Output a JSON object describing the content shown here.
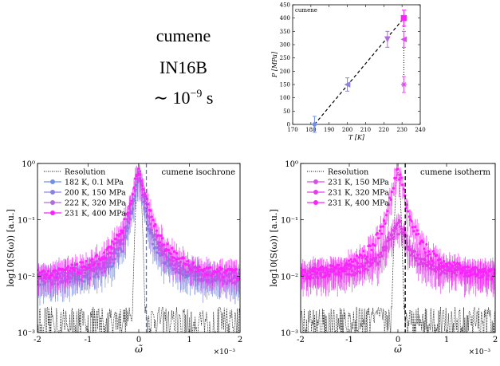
{
  "info": {
    "line1": "cumene",
    "line2": "IN16B",
    "line3_prefix": "∼ 10",
    "line3_exponent": "−9",
    "line3_unit": " s"
  },
  "chart_data": [
    {
      "id": "pt-diagram",
      "type": "scatter",
      "annotation": "cumene",
      "xlabel": "T [K]",
      "ylabel": "P [MPa]",
      "xlim": [
        170,
        240
      ],
      "ylim": [
        0,
        450
      ],
      "xticks": [
        "170",
        "180",
        "190",
        "200",
        "210",
        "220",
        "230",
        "240"
      ],
      "yticks": [
        "0",
        "50",
        "100",
        "150",
        "200",
        "250",
        "300",
        "350",
        "400",
        "450"
      ],
      "grid": false,
      "points": [
        {
          "x": 182,
          "y": 0.1,
          "yerr": 30,
          "marker": "diamond",
          "color": "#6f8fe8"
        },
        {
          "x": 200,
          "y": 150,
          "yerr": 25,
          "marker": "tri-left",
          "color": "#8b82e0"
        },
        {
          "x": 222,
          "y": 320,
          "yerr": 30,
          "marker": "tri-down",
          "color": "#b06de0"
        },
        {
          "x": 231,
          "y": 150,
          "yerr": 30,
          "marker": "star",
          "color": "#d84ee8"
        },
        {
          "x": 231,
          "y": 320,
          "yerr": 30,
          "marker": "tri-left",
          "color": "#d84ee8"
        },
        {
          "x": 231,
          "y": 400,
          "yerr": 30,
          "marker": "square",
          "color": "#ff20ff"
        }
      ],
      "dashed_line": {
        "x": [
          182,
          231
        ],
        "y": [
          0,
          400
        ]
      },
      "dotted_line": {
        "x": [
          231,
          231
        ],
        "y": [
          150,
          400
        ]
      }
    },
    {
      "id": "isochrone",
      "type": "line",
      "annotation": "cumene isochrone",
      "xlabel": "ω̃",
      "ylabel": "log10(S(ω)) [a.u.]",
      "x_multiplier": "×10⁻³",
      "xlim": [
        -2,
        2
      ],
      "ylim_log": [
        -3,
        0
      ],
      "xticks": [
        "-2",
        "-1",
        "0",
        "1",
        "2"
      ],
      "yticks": [
        "10⁻³",
        "10⁻²",
        "10⁻¹",
        "10⁰"
      ],
      "legend_position": "top-left",
      "dashed_vline_x": 0.15,
      "dashed_vline_color": "#4f6fe8",
      "series": [
        {
          "name": "Resolution",
          "color": "#000000",
          "style": "dotted",
          "peak": 0.7,
          "width": 0.05,
          "floor": 0.0013
        },
        {
          "name": "182 K, 0.1 MPa",
          "color": "#6f8fe8",
          "style": "marker",
          "peak": 0.62,
          "width": 0.2,
          "floor": 0.0075
        },
        {
          "name": "200 K, 150 MPa",
          "color": "#8b82e0",
          "style": "marker",
          "peak": 0.64,
          "width": 0.22,
          "floor": 0.008
        },
        {
          "name": "222 K, 320 MPa",
          "color": "#b06de0",
          "style": "marker",
          "peak": 0.66,
          "width": 0.25,
          "floor": 0.0085
        },
        {
          "name": "231 K, 400 MPa",
          "color": "#ff20ff",
          "style": "marker",
          "peak": 0.68,
          "width": 0.3,
          "floor": 0.009
        }
      ]
    },
    {
      "id": "isotherm",
      "type": "line",
      "annotation": "cumene isotherm",
      "xlabel": "ω̃",
      "ylabel": "log10(S(ω)) [a.u.]",
      "x_multiplier": "×10⁻³",
      "xlim": [
        -2,
        2
      ],
      "ylim_log": [
        -3,
        0
      ],
      "xticks": [
        "-2",
        "-1",
        "0",
        "1",
        "2"
      ],
      "yticks": [
        "10⁻³",
        "10⁻²",
        "10⁻¹",
        "10⁰"
      ],
      "legend_position": "top-left",
      "dashed_vline_x": 0.15,
      "dashed_vline_color": "#000000",
      "series": [
        {
          "name": "Resolution",
          "color": "#000000",
          "style": "dotted",
          "peak": 0.7,
          "width": 0.05,
          "floor": 0.0013
        },
        {
          "name": "231 K, 150 MPa",
          "color": "#d84ee8",
          "style": "marker",
          "peak": 0.07,
          "width": 0.5,
          "floor": 0.011
        },
        {
          "name": "231 K, 320 MPa",
          "color": "#e43ee8",
          "style": "marker",
          "peak": 0.09,
          "width": 0.45,
          "floor": 0.011
        },
        {
          "name": "231 K, 400 MPa",
          "color": "#ff20ff",
          "style": "marker",
          "peak": 0.68,
          "width": 0.3,
          "floor": 0.009
        }
      ]
    }
  ]
}
